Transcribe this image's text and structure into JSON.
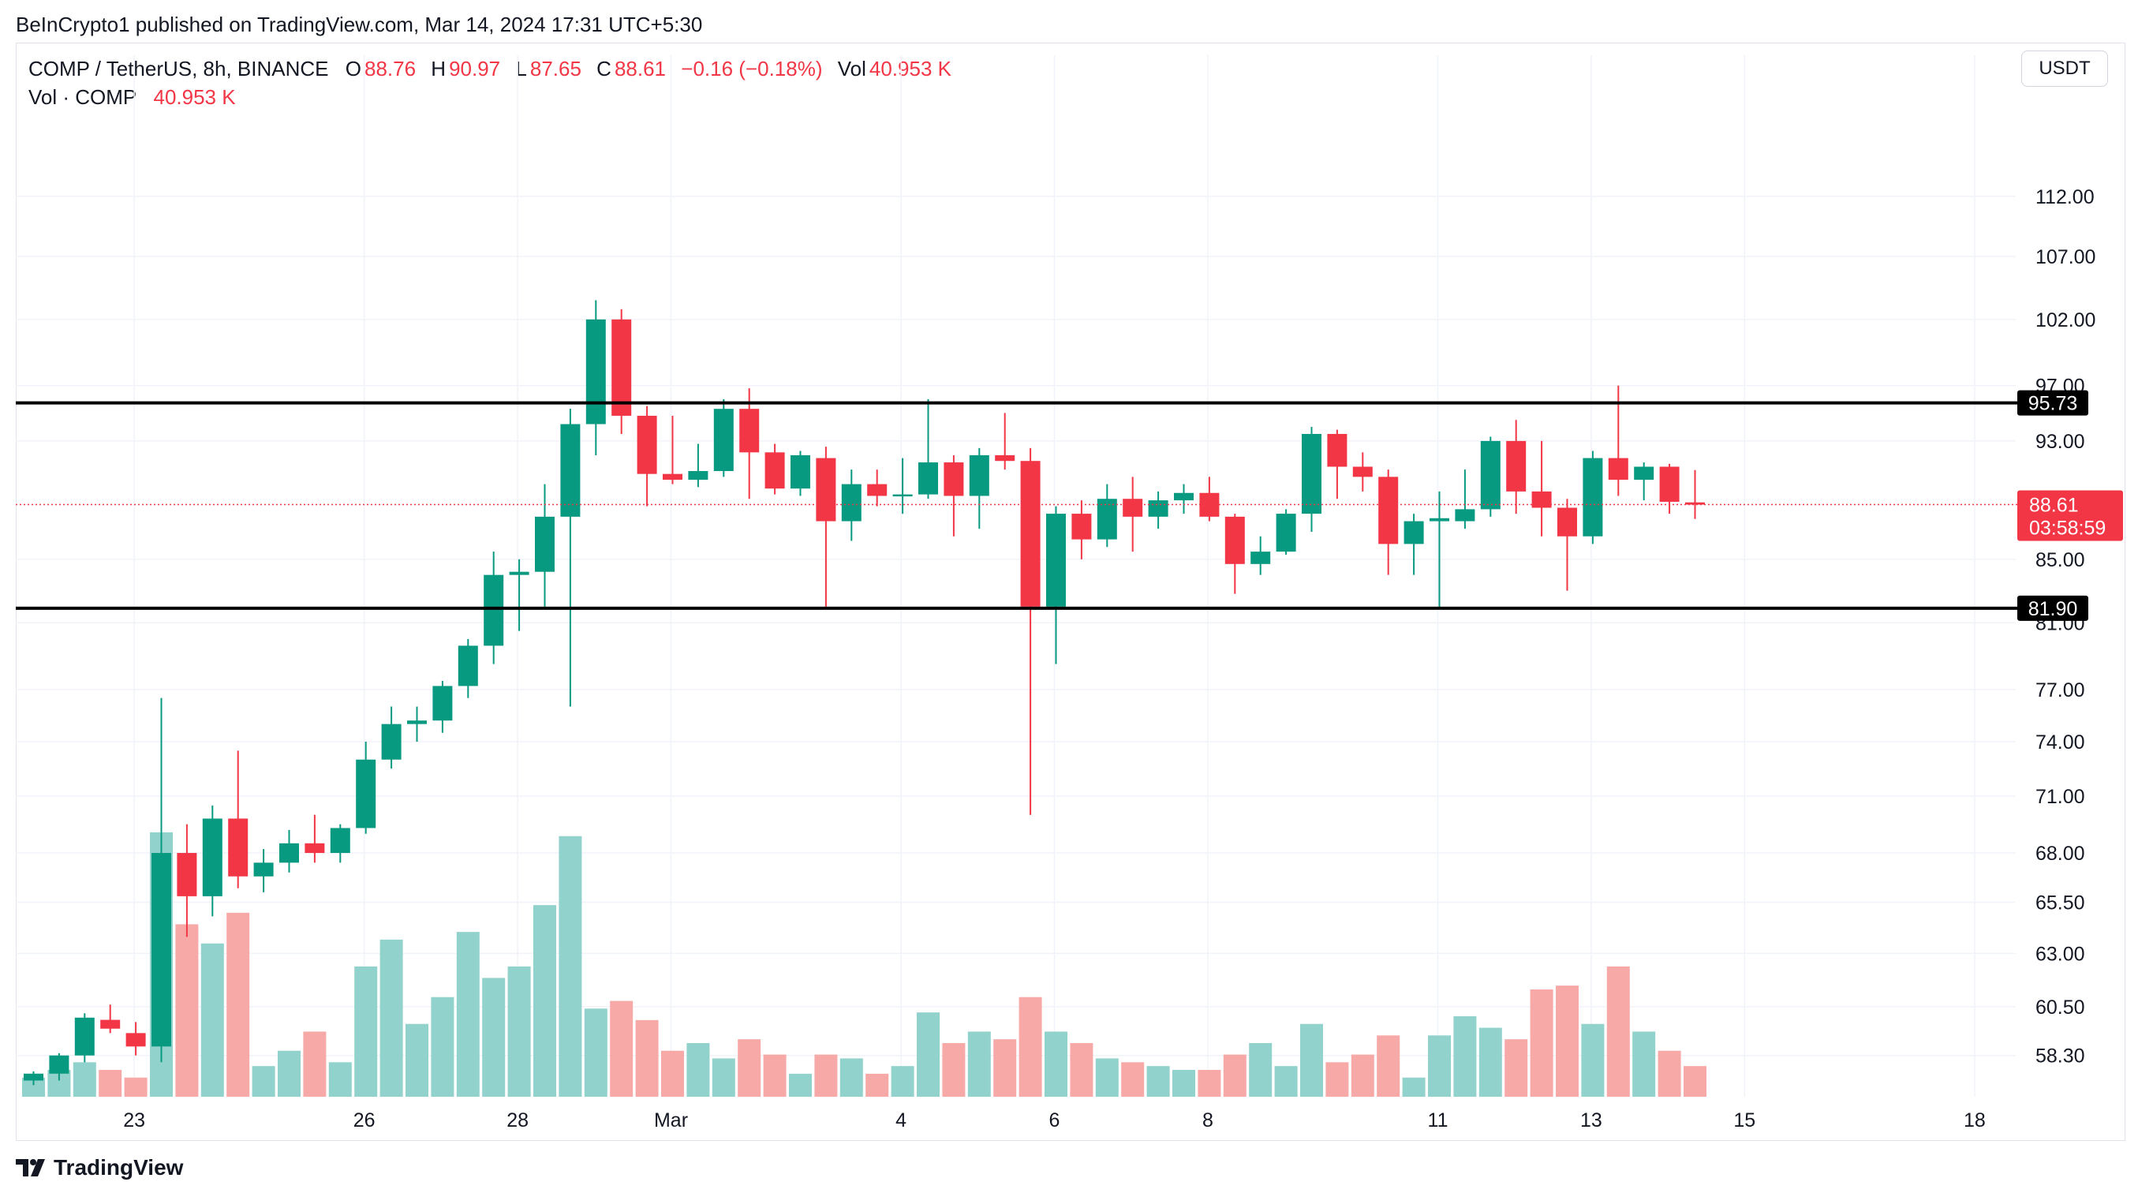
{
  "publisher": "BeInCrypto1 published on TradingView.com, Mar 14, 2024 17:31 UTC+5:30",
  "legend": {
    "symbol": "COMP / TetherUS, 8h, BINANCE",
    "o_label": "O",
    "o_value": "88.76",
    "h_label": "H",
    "h_value": "90.97",
    "l_label": "L",
    "l_value": "87.65",
    "c_label": "C",
    "c_value": "88.61",
    "change": "−0.16 (−0.18%)",
    "vol_label": "Vol",
    "vol_value": "40.953 K",
    "vol_series_label": "Vol · COMP",
    "vol_series_value": "40.953 K"
  },
  "currency": "USDT",
  "brand": "TradingView",
  "colors": {
    "up": "#089981",
    "down": "#f23645",
    "up_vol": "#92d2cc",
    "down_vol": "#f7a9a7",
    "grid": "#f0f3fa"
  },
  "chart_data": {
    "type": "candlestick",
    "title": "COMP / TetherUS, 8h, BINANCE",
    "y_range": [
      56.5,
      121
    ],
    "y_scale": "log",
    "y_ticks": [
      "112.00",
      "107.00",
      "102.00",
      "97.00",
      "93.00",
      "85.00",
      "81.00",
      "77.00",
      "74.00",
      "71.00",
      "68.00",
      "65.50",
      "63.00",
      "60.50",
      "58.30"
    ],
    "x_ticks": [
      {
        "label": "23",
        "bar": 4
      },
      {
        "label": "26",
        "bar": 13
      },
      {
        "label": "28",
        "bar": 19
      },
      {
        "label": "Mar",
        "bar": 25
      },
      {
        "label": "4",
        "bar": 34
      },
      {
        "label": "6",
        "bar": 40
      },
      {
        "label": "8",
        "bar": 46
      },
      {
        "label": "11",
        "bar": 55
      },
      {
        "label": "13",
        "bar": 61
      },
      {
        "label": "15",
        "bar": 67
      },
      {
        "label": "18",
        "bar": 76
      }
    ],
    "horizontal_lines": [
      {
        "value": 95.73,
        "label": "95.73"
      },
      {
        "value": 81.9,
        "label": "81.90"
      }
    ],
    "last_price": {
      "value": 88.61,
      "label": "88.61",
      "countdown": "03:58:59"
    },
    "volume_max": 70,
    "candles": [
      {
        "o": 57.2,
        "h": 57.6,
        "l": 57.0,
        "c": 57.5,
        "v": 5
      },
      {
        "o": 57.5,
        "h": 58.4,
        "l": 57.2,
        "c": 58.3,
        "v": 7
      },
      {
        "o": 58.3,
        "h": 60.2,
        "l": 58.0,
        "c": 60.0,
        "v": 9
      },
      {
        "o": 59.9,
        "h": 60.6,
        "l": 59.3,
        "c": 59.5,
        "v": 7
      },
      {
        "o": 59.3,
        "h": 59.8,
        "l": 58.3,
        "c": 58.7,
        "v": 5
      },
      {
        "o": 58.7,
        "h": 76.5,
        "l": 58.0,
        "c": 68.0,
        "v": 69
      },
      {
        "o": 68.0,
        "h": 69.5,
        "l": 63.8,
        "c": 65.8,
        "v": 45
      },
      {
        "o": 65.8,
        "h": 70.5,
        "l": 64.8,
        "c": 69.8,
        "v": 40
      },
      {
        "o": 69.8,
        "h": 73.5,
        "l": 66.2,
        "c": 66.8,
        "v": 48
      },
      {
        "o": 66.8,
        "h": 68.2,
        "l": 66.0,
        "c": 67.5,
        "v": 8
      },
      {
        "o": 67.5,
        "h": 69.2,
        "l": 67.0,
        "c": 68.5,
        "v": 12
      },
      {
        "o": 68.5,
        "h": 70.0,
        "l": 67.5,
        "c": 68.0,
        "v": 17
      },
      {
        "o": 68.0,
        "h": 69.5,
        "l": 67.5,
        "c": 69.3,
        "v": 9
      },
      {
        "o": 69.3,
        "h": 74.0,
        "l": 69.0,
        "c": 73.0,
        "v": 34
      },
      {
        "o": 73.0,
        "h": 76.0,
        "l": 72.5,
        "c": 75.0,
        "v": 41
      },
      {
        "o": 75.0,
        "h": 76.0,
        "l": 74.0,
        "c": 75.2,
        "v": 19
      },
      {
        "o": 75.2,
        "h": 77.5,
        "l": 74.5,
        "c": 77.2,
        "v": 26
      },
      {
        "o": 77.2,
        "h": 80.0,
        "l": 76.5,
        "c": 79.6,
        "v": 43
      },
      {
        "o": 79.6,
        "h": 85.5,
        "l": 78.5,
        "c": 84.0,
        "v": 31
      },
      {
        "o": 84.0,
        "h": 85.0,
        "l": 80.5,
        "c": 84.2,
        "v": 34
      },
      {
        "o": 84.2,
        "h": 90.0,
        "l": 82.0,
        "c": 87.8,
        "v": 50
      },
      {
        "o": 87.8,
        "h": 95.3,
        "l": 76.0,
        "c": 94.2,
        "v": 68
      },
      {
        "o": 94.2,
        "h": 103.5,
        "l": 92.0,
        "c": 102.0,
        "v": 23
      },
      {
        "o": 102.0,
        "h": 102.8,
        "l": 93.5,
        "c": 94.8,
        "v": 25
      },
      {
        "o": 94.8,
        "h": 95.5,
        "l": 88.5,
        "c": 90.7,
        "v": 20
      },
      {
        "o": 90.7,
        "h": 94.8,
        "l": 90.0,
        "c": 90.3,
        "v": 12
      },
      {
        "o": 90.3,
        "h": 92.8,
        "l": 89.8,
        "c": 90.9,
        "v": 14
      },
      {
        "o": 90.9,
        "h": 96.0,
        "l": 90.5,
        "c": 95.3,
        "v": 10
      },
      {
        "o": 95.3,
        "h": 96.8,
        "l": 89.0,
        "c": 92.2,
        "v": 15
      },
      {
        "o": 92.2,
        "h": 92.8,
        "l": 89.3,
        "c": 89.7,
        "v": 11
      },
      {
        "o": 89.7,
        "h": 92.3,
        "l": 89.2,
        "c": 92.0,
        "v": 6
      },
      {
        "o": 91.8,
        "h": 92.6,
        "l": 82.0,
        "c": 87.5,
        "v": 11
      },
      {
        "o": 87.5,
        "h": 91.0,
        "l": 86.2,
        "c": 90.0,
        "v": 10
      },
      {
        "o": 90.0,
        "h": 91.0,
        "l": 88.5,
        "c": 89.2,
        "v": 6
      },
      {
        "o": 89.2,
        "h": 91.8,
        "l": 88.0,
        "c": 89.3,
        "v": 8
      },
      {
        "o": 89.3,
        "h": 96.0,
        "l": 89.0,
        "c": 91.5,
        "v": 22
      },
      {
        "o": 91.5,
        "h": 92.0,
        "l": 86.5,
        "c": 89.2,
        "v": 14
      },
      {
        "o": 89.2,
        "h": 92.5,
        "l": 87.0,
        "c": 92.0,
        "v": 17
      },
      {
        "o": 92.0,
        "h": 95.0,
        "l": 91.0,
        "c": 91.6,
        "v": 15
      },
      {
        "o": 91.6,
        "h": 92.5,
        "l": 70.0,
        "c": 82.0,
        "v": 26
      },
      {
        "o": 82.0,
        "h": 88.5,
        "l": 78.5,
        "c": 88.0,
        "v": 17
      },
      {
        "o": 88.0,
        "h": 88.9,
        "l": 85.0,
        "c": 86.3,
        "v": 14
      },
      {
        "o": 86.3,
        "h": 90.0,
        "l": 85.8,
        "c": 89.0,
        "v": 10
      },
      {
        "o": 89.0,
        "h": 90.5,
        "l": 85.5,
        "c": 87.8,
        "v": 9
      },
      {
        "o": 87.8,
        "h": 89.5,
        "l": 87.0,
        "c": 88.9,
        "v": 8
      },
      {
        "o": 88.9,
        "h": 90.0,
        "l": 88.0,
        "c": 89.4,
        "v": 7
      },
      {
        "o": 89.4,
        "h": 90.5,
        "l": 87.5,
        "c": 87.8,
        "v": 7
      },
      {
        "o": 87.8,
        "h": 88.0,
        "l": 82.8,
        "c": 84.7,
        "v": 11
      },
      {
        "o": 84.7,
        "h": 86.5,
        "l": 84.0,
        "c": 85.5,
        "v": 14
      },
      {
        "o": 85.5,
        "h": 88.3,
        "l": 85.3,
        "c": 88.0,
        "v": 8
      },
      {
        "o": 88.0,
        "h": 94.0,
        "l": 86.8,
        "c": 93.5,
        "v": 19
      },
      {
        "o": 93.5,
        "h": 93.8,
        "l": 89.0,
        "c": 91.2,
        "v": 9
      },
      {
        "o": 91.2,
        "h": 92.2,
        "l": 89.5,
        "c": 90.5,
        "v": 11
      },
      {
        "o": 90.5,
        "h": 91.0,
        "l": 84.0,
        "c": 86.0,
        "v": 16
      },
      {
        "o": 86.0,
        "h": 88.0,
        "l": 84.0,
        "c": 87.5,
        "v": 5
      },
      {
        "o": 87.5,
        "h": 89.5,
        "l": 81.9,
        "c": 87.7,
        "v": 16
      },
      {
        "o": 87.5,
        "h": 91.0,
        "l": 87.0,
        "c": 88.3,
        "v": 21
      },
      {
        "o": 88.3,
        "h": 93.3,
        "l": 87.8,
        "c": 93.0,
        "v": 18
      },
      {
        "o": 93.0,
        "h": 94.5,
        "l": 88.0,
        "c": 89.5,
        "v": 15
      },
      {
        "o": 89.5,
        "h": 93.0,
        "l": 86.5,
        "c": 88.4,
        "v": 28
      },
      {
        "o": 88.4,
        "h": 89.0,
        "l": 83.0,
        "c": 86.5,
        "v": 29
      },
      {
        "o": 86.5,
        "h": 92.3,
        "l": 86.0,
        "c": 91.8,
        "v": 19
      },
      {
        "o": 91.8,
        "h": 97.0,
        "l": 89.2,
        "c": 90.3,
        "v": 34
      },
      {
        "o": 90.3,
        "h": 91.5,
        "l": 88.9,
        "c": 91.2,
        "v": 17
      },
      {
        "o": 91.2,
        "h": 91.4,
        "l": 88.0,
        "c": 88.8,
        "v": 12
      },
      {
        "o": 88.76,
        "h": 90.97,
        "l": 87.65,
        "c": 88.61,
        "v": 8
      }
    ]
  }
}
